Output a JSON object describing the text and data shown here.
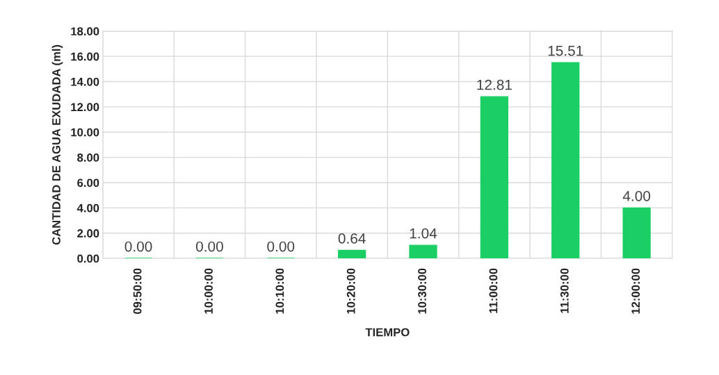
{
  "chart_data": {
    "type": "bar",
    "xlabel": "TIEMPO",
    "ylabel": "CANTIDAD DE AGUA EXUDADA (ml)",
    "categories": [
      "09:50:00",
      "10:00:00",
      "10:10:00",
      "10:20:00",
      "10:30:00",
      "11:00:00",
      "11:30:00",
      "12:00:00"
    ],
    "values": [
      0.0,
      0.0,
      0.0,
      0.64,
      1.04,
      12.81,
      15.51,
      4.0
    ],
    "value_labels": [
      "0.00",
      "0.00",
      "0.00",
      "0.64",
      "1.04",
      "12.81",
      "15.51",
      "4.00"
    ],
    "color": "#1ccf64",
    "ylim": [
      0,
      18
    ],
    "yticks": [
      {
        "value": 0,
        "label": "0.00"
      },
      {
        "value": 2,
        "label": "2.00"
      },
      {
        "value": 4,
        "label": "4.00"
      },
      {
        "value": 6,
        "label": "6.00"
      },
      {
        "value": 8,
        "label": "8.00"
      },
      {
        "value": 10,
        "label": "10.00"
      },
      {
        "value": 12,
        "label": "12.00"
      },
      {
        "value": 14,
        "label": "14.00"
      },
      {
        "value": 16,
        "label": "16.00"
      },
      {
        "value": 18,
        "label": "18.00"
      }
    ],
    "grid": true
  }
}
